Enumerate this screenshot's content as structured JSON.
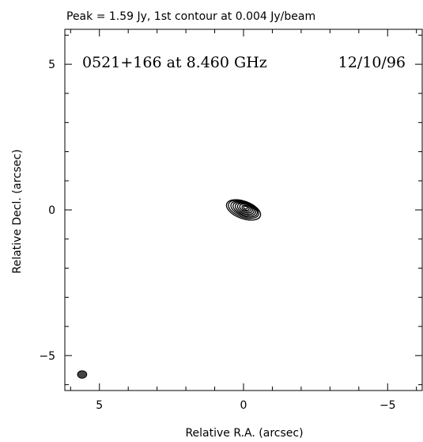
{
  "chart_data": {
    "type": "contour",
    "title": "Peak = 1.59 Jy, 1st contour at 0.004 Jy/beam",
    "annotation": {
      "source": "0521+166 at 8.460 GHz",
      "date": "12/10/96"
    },
    "xlabel": "Relative R.A. (arcsec)",
    "ylabel": "Relative Decl. (arcsec)",
    "xlim": [
      6.2,
      -6.2
    ],
    "ylim": [
      -6.2,
      6.2
    ],
    "xticks": [
      5,
      0,
      -5
    ],
    "yticks": [
      5,
      0,
      -5
    ],
    "x_tick_labels": [
      "5",
      "0",
      "−5"
    ],
    "y_tick_labels": [
      "5",
      "0",
      "−5"
    ],
    "minor_tick_step": 1,
    "grid": false,
    "peak_jy": 1.59,
    "first_contour_jy_per_beam": 0.004,
    "source_center": [
      0.0,
      0.0
    ],
    "contours": [
      {
        "center_x": 0.0,
        "center_y": 0.0,
        "semi_major": 0.62,
        "semi_minor": 0.3,
        "pa_deg": -20
      },
      {
        "center_x": 0.0,
        "center_y": 0.02,
        "semi_major": 0.55,
        "semi_minor": 0.27,
        "pa_deg": -20
      },
      {
        "center_x": -0.02,
        "center_y": 0.03,
        "semi_major": 0.48,
        "semi_minor": 0.24,
        "pa_deg": -20
      },
      {
        "center_x": -0.03,
        "center_y": 0.04,
        "semi_major": 0.41,
        "semi_minor": 0.21,
        "pa_deg": -20
      },
      {
        "center_x": -0.04,
        "center_y": 0.05,
        "semi_major": 0.34,
        "semi_minor": 0.18,
        "pa_deg": -20
      },
      {
        "center_x": -0.05,
        "center_y": 0.06,
        "semi_major": 0.27,
        "semi_minor": 0.15,
        "pa_deg": -20
      },
      {
        "center_x": -0.06,
        "center_y": 0.07,
        "semi_major": 0.2,
        "semi_minor": 0.12,
        "pa_deg": -20
      },
      {
        "center_x": -0.07,
        "center_y": 0.07,
        "semi_major": 0.13,
        "semi_minor": 0.08,
        "pa_deg": -20
      },
      {
        "center_x": -0.07,
        "center_y": 0.08,
        "semi_major": 0.07,
        "semi_minor": 0.045,
        "pa_deg": -20
      }
    ],
    "beam": {
      "center_x": 5.6,
      "center_y": -5.65,
      "semi_major": 0.16,
      "semi_minor": 0.13,
      "pa_deg": 0
    }
  }
}
